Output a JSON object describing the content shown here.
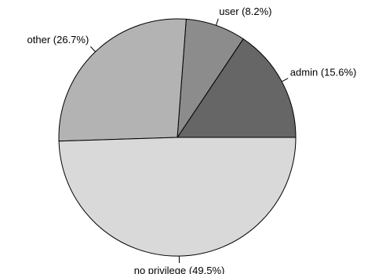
{
  "chart_data": {
    "type": "pie",
    "slices": [
      {
        "label": "admin (15.6%)",
        "value": 15.6,
        "color": "#666666"
      },
      {
        "label": "user (8.2%)",
        "value": 8.2,
        "color": "#8c8c8c"
      },
      {
        "label": "other (26.7%)",
        "value": 26.7,
        "color": "#b3b3b3"
      },
      {
        "label": "no privilege (49.5%)",
        "value": 49.5,
        "color": "#d9d9d9"
      }
    ],
    "start_angle": "3 o'clock",
    "direction": "counterclockwise"
  }
}
